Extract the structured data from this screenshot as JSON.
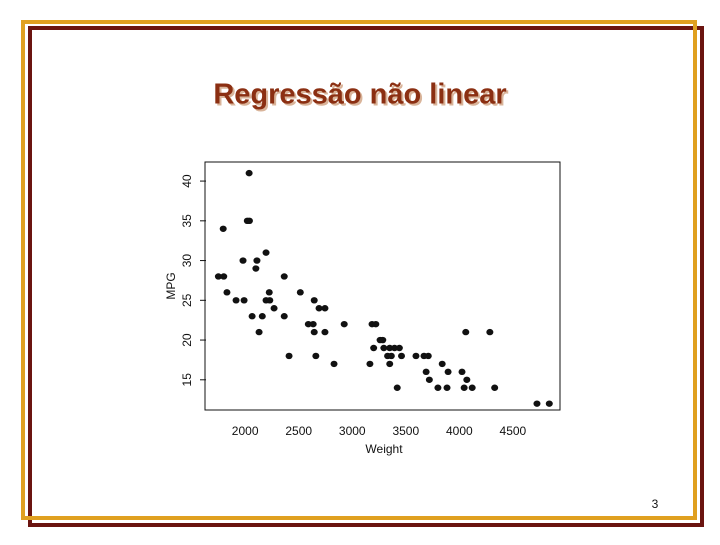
{
  "chart_data": {
    "type": "scatter",
    "title": "Regressão não linear",
    "x_label": "Weight",
    "y_label": "MPG",
    "color": "#111111",
    "x": [
      2037,
      2020,
      2040,
      1795,
      2195,
      1980,
      2110,
      2100,
      1750,
      1800,
      2365,
      1830,
      2225,
      2515,
      1915,
      1990,
      2195,
      2230,
      2645,
      2270,
      2690,
      2745,
      2065,
      2160,
      2365,
      2590,
      2635,
      2925,
      3185,
      3220,
      2130,
      2645,
      2745,
      4060,
      4285,
      3260,
      3285,
      3200,
      3295,
      3350,
      3395,
      3440,
      2410,
      2660,
      3330,
      3365,
      3460,
      3595,
      3670,
      3710,
      2830,
      3165,
      3350,
      3840,
      3690,
      3895,
      4025,
      3720,
      4070,
      3420,
      3800,
      3885,
      4045,
      4120,
      4330,
      4725,
      4840
    ],
    "values": [
      41,
      35,
      35,
      34,
      31,
      30,
      30,
      29,
      28,
      28,
      28,
      26,
      26,
      26,
      25,
      25,
      25,
      25,
      25,
      24,
      24,
      24,
      23,
      23,
      23,
      22,
      22,
      22,
      22,
      22,
      21,
      21,
      21,
      21,
      21,
      20,
      20,
      19,
      19,
      19,
      19,
      19,
      18,
      18,
      18,
      18,
      18,
      18,
      18,
      18,
      17,
      17,
      17,
      17,
      16,
      16,
      16,
      15,
      15,
      14,
      14,
      14,
      14,
      14,
      14,
      12,
      12
    ],
    "xlim": [
      1625,
      4940
    ],
    "ylim": [
      11.2,
      42.4
    ],
    "xticks": [
      2000,
      2500,
      3000,
      3500,
      4000,
      4500
    ],
    "yticks": [
      15,
      20,
      25,
      30,
      35,
      40
    ]
  },
  "slide": {
    "page_number": "3"
  }
}
